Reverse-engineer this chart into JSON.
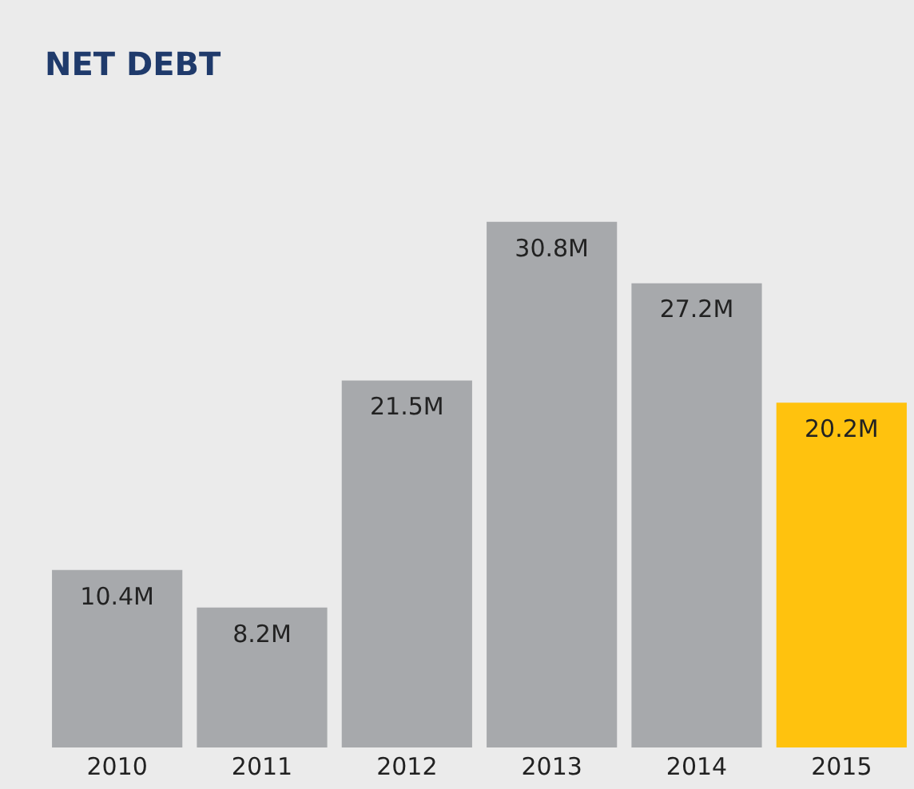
{
  "chart_data": {
    "type": "bar",
    "title": "NET DEBT",
    "categories": [
      "2010",
      "2011",
      "2012",
      "2013",
      "2014",
      "2015"
    ],
    "values": [
      10.4,
      8.2,
      21.5,
      30.8,
      27.2,
      20.2
    ],
    "colors": [
      "#a7a9ac",
      "#a7a9ac",
      "#a7a9ac",
      "#a7a9ac",
      "#a7a9ac",
      "#ffc20e"
    ],
    "value_labels": [
      "10.4M",
      "8.2M",
      "21.5M",
      "30.8M",
      "27.2M",
      "20.2M"
    ],
    "grid": false,
    "legend": false
  }
}
